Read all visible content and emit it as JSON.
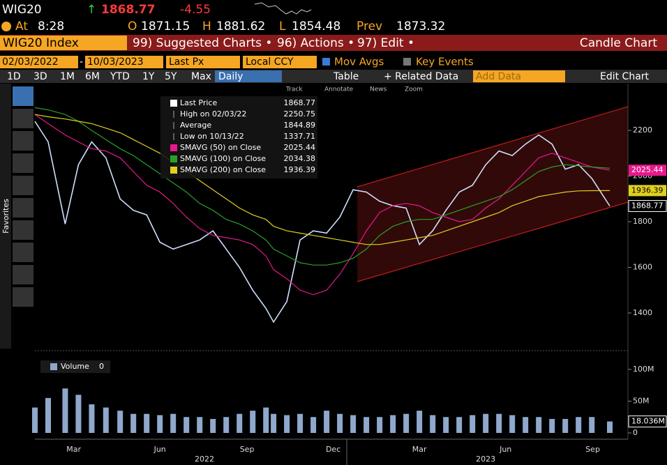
{
  "header": {
    "ticker": "WIG20",
    "last": "1868.77",
    "change": "-4.55",
    "time_label": "At",
    "time": "8:28",
    "open_label": "O",
    "open": "1871.15",
    "high_label": "H",
    "high": "1881.62",
    "low_label": "L",
    "low": "1854.48",
    "prev_label": "Prev",
    "prev": "1873.32"
  },
  "menu": {
    "security": "WIG20 Index",
    "items": [
      "99) Suggested Charts •",
      "96) Actions •",
      "97) Edit •"
    ],
    "chart_type": "Candle Chart"
  },
  "controls": {
    "start": "02/03/2022",
    "end": "10/03/2023",
    "field": "Last Px",
    "currency": "Local CCY",
    "mov_avgs": "Mov Avgs",
    "key_events": "Key Events"
  },
  "periods": [
    "1D",
    "3D",
    "1M",
    "6M",
    "YTD",
    "1Y",
    "5Y",
    "Max"
  ],
  "frequency": "Daily",
  "table": "Table",
  "related": "+ Related Data",
  "add_data": "Add Data",
  "edit_chart": "Edit Chart",
  "tools": [
    "Track",
    "Annotate",
    "News",
    "Zoom"
  ],
  "sidebar": "Favorites",
  "chart_data": [
    {
      "type": "line",
      "x": [
        "2022-02-03",
        "2022-02-17",
        "2022-03-07",
        "2022-03-21",
        "2022-04-04",
        "2022-04-19",
        "2022-05-04",
        "2022-05-18",
        "2022-06-01",
        "2022-06-15",
        "2022-06-29",
        "2022-07-13",
        "2022-07-27",
        "2022-08-10",
        "2022-08-24",
        "2022-09-07",
        "2022-09-21",
        "2022-10-05",
        "2022-10-13",
        "2022-10-27",
        "2022-11-10",
        "2022-11-24",
        "2022-12-08",
        "2022-12-22",
        "2023-01-05",
        "2023-01-19",
        "2023-02-02",
        "2023-02-16",
        "2023-03-02",
        "2023-03-16",
        "2023-03-30",
        "2023-04-13",
        "2023-04-27",
        "2023-05-11",
        "2023-05-25",
        "2023-06-08",
        "2023-06-22",
        "2023-07-06",
        "2023-07-20",
        "2023-08-03",
        "2023-08-17",
        "2023-08-31",
        "2023-09-14",
        "2023-10-03"
      ],
      "series": [
        {
          "name": "Last Price",
          "color": "#cfe0ff",
          "values": [
            2240,
            2150,
            1790,
            2050,
            2150,
            2080,
            1900,
            1850,
            1830,
            1710,
            1680,
            1700,
            1720,
            1760,
            1680,
            1600,
            1500,
            1420,
            1360,
            1450,
            1720,
            1760,
            1750,
            1820,
            1940,
            1930,
            1890,
            1870,
            1860,
            1700,
            1760,
            1850,
            1930,
            1960,
            2050,
            2110,
            2090,
            2140,
            2180,
            2140,
            2030,
            2050,
            1990,
            1868.77
          ]
        },
        {
          "name": "SMAVG (50)  on Close",
          "color": "#e6198c",
          "values": [
            2270,
            2230,
            2180,
            2150,
            2120,
            2110,
            2080,
            2020,
            1960,
            1930,
            1880,
            1820,
            1770,
            1740,
            1730,
            1720,
            1700,
            1650,
            1590,
            1550,
            1500,
            1480,
            1500,
            1570,
            1660,
            1760,
            1840,
            1870,
            1880,
            1870,
            1840,
            1820,
            1800,
            1810,
            1860,
            1900,
            1960,
            2020,
            2080,
            2100,
            2080,
            2060,
            2040,
            2025.44
          ]
        },
        {
          "name": "SMAVG (100)  on Close",
          "color": "#2aa02a",
          "values": [
            2300,
            2290,
            2270,
            2240,
            2200,
            2160,
            2120,
            2090,
            2050,
            2010,
            1970,
            1930,
            1880,
            1850,
            1810,
            1790,
            1760,
            1720,
            1680,
            1650,
            1620,
            1610,
            1610,
            1620,
            1640,
            1680,
            1740,
            1780,
            1800,
            1810,
            1810,
            1830,
            1850,
            1870,
            1890,
            1910,
            1940,
            1980,
            2020,
            2040,
            2050,
            2045,
            2040,
            2034.38
          ]
        },
        {
          "name": "SMAVG (200)  on Close",
          "color": "#e0d020",
          "values": [
            2270,
            2260,
            2250,
            2240,
            2230,
            2210,
            2190,
            2160,
            2130,
            2100,
            2060,
            2020,
            1980,
            1940,
            1900,
            1860,
            1830,
            1810,
            1780,
            1760,
            1750,
            1740,
            1730,
            1720,
            1710,
            1700,
            1700,
            1710,
            1720,
            1730,
            1740,
            1760,
            1780,
            1800,
            1820,
            1840,
            1870,
            1890,
            1910,
            1920,
            1930,
            1935,
            1936,
            1936.39
          ]
        }
      ],
      "stats": {
        "high_label": "High on 02/03/22",
        "high": 2250.75,
        "average_label": "Average",
        "average": 1844.89,
        "low_label": "Low on 10/13/22",
        "low": 1337.71
      },
      "xlim": [
        "2022-02-03",
        "2023-10-03"
      ],
      "xticks": [
        {
          "value": "2022-03-16",
          "label": "Mar"
        },
        {
          "value": "2022-06-15",
          "label": "Jun"
        },
        {
          "value": "2022-09-15",
          "label": "Sep"
        },
        {
          "value": "2022-12-15",
          "label": "Dec"
        },
        {
          "value": "2023-03-16",
          "label": "Mar"
        },
        {
          "value": "2023-06-15",
          "label": "Jun"
        },
        {
          "value": "2023-09-15",
          "label": "Sep"
        }
      ],
      "year_ticks": [
        {
          "value": "2022-08-01",
          "label": "2022"
        },
        {
          "value": "2023-05-25",
          "label": "2023"
        }
      ],
      "ylim": [
        1244,
        2405
      ],
      "yticks": [
        1400,
        1600,
        1800,
        2000,
        2200
      ]
    },
    {
      "type": "bar",
      "series": [
        {
          "name": "Volume",
          "color": "#8fa8cc",
          "values": [
            40,
            55,
            70,
            60,
            45,
            40,
            35,
            30,
            30,
            28,
            30,
            25,
            25,
            22,
            25,
            30,
            35,
            40,
            30,
            28,
            30,
            25,
            35,
            30,
            28,
            25,
            25,
            28,
            30,
            35,
            28,
            25,
            25,
            28,
            30,
            30,
            28,
            25,
            25,
            22,
            22,
            25,
            25,
            18.036
          ]
        }
      ],
      "legend_value": "0",
      "current_label": "18.036M",
      "ylim": [
        0,
        124
      ],
      "yticks": [
        0,
        {
          "value": 50,
          "label": "50M"
        },
        {
          "value": 100,
          "label": "100M"
        }
      ]
    }
  ]
}
